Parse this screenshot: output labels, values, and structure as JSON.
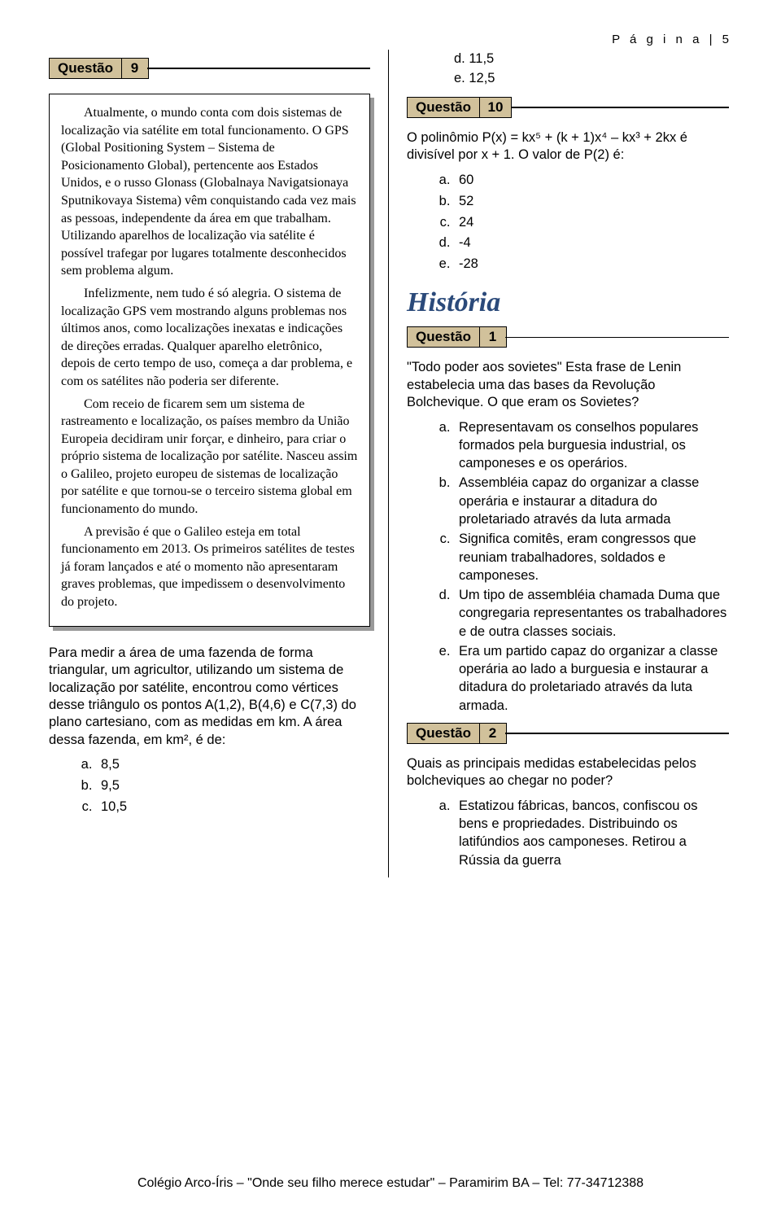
{
  "page_header": "P á g i n a  | 5",
  "left": {
    "q9": {
      "label": "Questão",
      "num": "9"
    },
    "box_paras": [
      "Atualmente, o mundo conta com dois sistemas de localização via satélite em total funcionamento. O GPS (Global Positioning System – Sistema de Posicionamento Global), pertencente aos Estados Unidos, e o russo Glonass (Globalnaya Navigatsionaya Sputnikovaya Sistema) vêm conquistando cada vez mais as pessoas, independente da área em que trabalham. Utilizando aparelhos de localização via satélite é possível trafegar por lugares totalmente desconhecidos sem problema algum.",
      "Infelizmente, nem tudo é só alegria. O sistema de localização GPS vem mostrando alguns problemas nos últimos anos, como localizações inexatas e indicações de direções erradas. Qualquer aparelho eletrônico, depois de certo tempo de uso, começa a dar problema, e com os satélites não poderia ser diferente.",
      "Com receio de ficarem sem um sistema de rastreamento e localização, os países membro da União Europeia decidiram unir forçar, e dinheiro, para criar o próprio sistema de localização por satélite. Nasceu assim o Galileo, projeto europeu de sistemas de localização por satélite e que tornou-se o terceiro sistema global em funcionamento do mundo.",
      "A previsão é que o Galileo esteja em total funcionamento em 2013. Os primeiros satélites de testes já foram lançados e até o momento não apresentaram graves problemas, que impedissem o desenvolvimento do projeto."
    ],
    "q9_body": "Para medir a área de uma fazenda de forma triangular, um agricultor, utilizando um sistema de localização por satélite, encontrou como vértices desse triângulo os pontos A(1,2), B(4,6) e C(7,3) do plano cartesiano, com as medidas em km. A área dessa fazenda, em km², é de:",
    "q9_opts": [
      "8,5",
      "9,5",
      "10,5"
    ]
  },
  "right": {
    "prev_d": "d.  11,5",
    "prev_e": "e.  12,5",
    "q10": {
      "label": "Questão",
      "num": "10"
    },
    "q10_body": "O polinômio P(x) = kx⁵ + (k + 1)x⁴ – kx³ + 2kx é divisível por x + 1. O valor de P(2) é:",
    "q10_opts": [
      "60",
      "52",
      "24",
      "-4",
      "-28"
    ],
    "section": "História",
    "q1": {
      "label": "Questão",
      "num": "1"
    },
    "q1_body": "\"Todo poder aos sovietes\" Esta frase de Lenin estabelecia uma das bases da Revolução Bolchevique. O que eram os Sovietes?",
    "q1_opts": [
      "Representavam os conselhos populares formados pela burguesia industrial, os camponeses e os operários.",
      "Assembléia capaz do organizar a classe operária e instaurar a ditadura do proletariado através da luta armada",
      " Significa comitês, eram congressos que reuniam trabalhadores, soldados e camponeses.",
      "Um tipo de assembléia chamada Duma que congregaria representantes os trabalhadores e de outra classes sociais.",
      " Era um partido capaz do organizar a classe operária ao lado a burguesia e instaurar a ditadura do proletariado através da luta armada."
    ],
    "q2": {
      "label": "Questão",
      "num": "2"
    },
    "q2_body": "Quais as principais medidas estabelecidas pelos bolcheviques ao chegar no poder?",
    "q2_opts": [
      "Estatizou fábricas, bancos, confiscou os bens e propriedades. Distribuindo os latifúndios aos camponeses. Retirou a Rússia da guerra"
    ]
  },
  "footer": "Colégio Arco-Íris – \"Onde seu filho merece estudar\" – Paramirim BA – Tel: 77-34712388"
}
